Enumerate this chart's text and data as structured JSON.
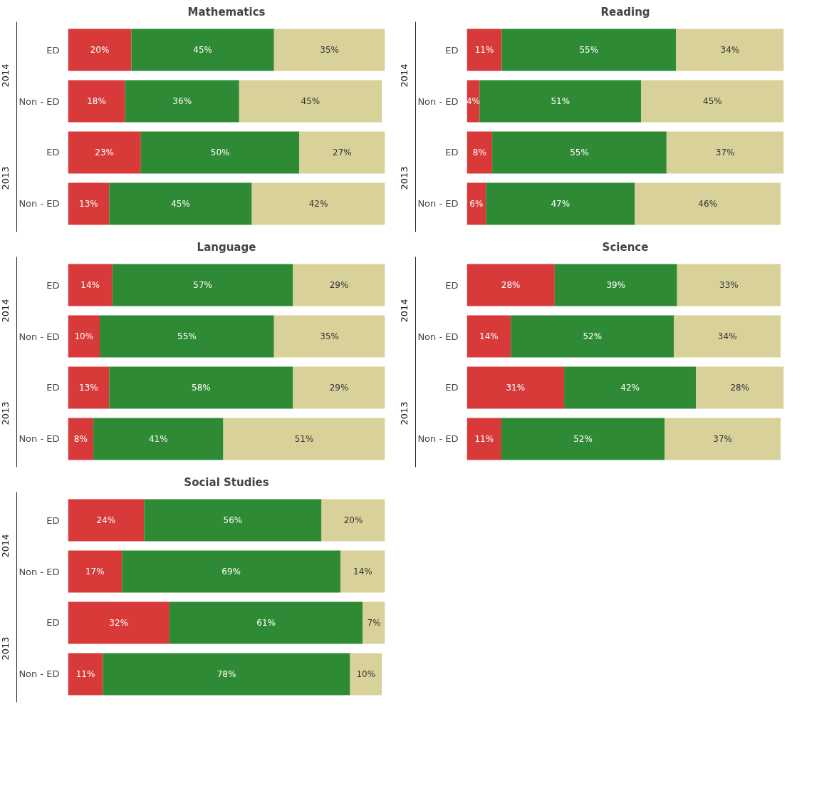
{
  "chart_data": [
    {
      "type": "bar",
      "orientation": "horizontal",
      "stacked": true,
      "title": "Mathematics",
      "categories": [
        "ED",
        "Non - ED",
        "ED",
        "Non - ED"
      ],
      "annotations": [
        "2014",
        "2013"
      ],
      "series": [
        {
          "color": "#d83a3a",
          "values": [
            20,
            18,
            23,
            13
          ],
          "value_labels": [
            "20%",
            "18%",
            "23%",
            "13%"
          ]
        },
        {
          "color": "#2f8a35",
          "values": [
            45,
            36,
            50,
            45
          ],
          "value_labels": [
            "45%",
            "36%",
            "50%",
            "45%"
          ]
        },
        {
          "color": "#d9d19a",
          "values": [
            35,
            45,
            27,
            42
          ],
          "value_labels": [
            "35%",
            "45%",
            "27%",
            "42%"
          ]
        }
      ]
    },
    {
      "type": "bar",
      "orientation": "horizontal",
      "stacked": true,
      "title": "Reading",
      "categories": [
        "ED",
        "Non - ED",
        "ED",
        "Non - ED"
      ],
      "annotations": [
        "2014",
        "2013"
      ],
      "series": [
        {
          "color": "#d83a3a",
          "values": [
            11,
            4,
            8,
            6
          ],
          "value_labels": [
            "11%",
            "4%",
            "8%",
            "6%"
          ]
        },
        {
          "color": "#2f8a35",
          "values": [
            55,
            51,
            55,
            47
          ],
          "value_labels": [
            "55%",
            "51%",
            "55%",
            "47%"
          ]
        },
        {
          "color": "#d9d19a",
          "values": [
            34,
            45,
            37,
            46
          ],
          "value_labels": [
            "34%",
            "45%",
            "37%",
            "46%"
          ]
        }
      ]
    },
    {
      "type": "bar",
      "orientation": "horizontal",
      "stacked": true,
      "title": "Language",
      "categories": [
        "ED",
        "Non - ED",
        "ED",
        "Non - ED"
      ],
      "annotations": [
        "2014",
        "2013"
      ],
      "series": [
        {
          "color": "#d83a3a",
          "values": [
            14,
            10,
            13,
            8
          ],
          "value_labels": [
            "14%",
            "10%",
            "13%",
            "8%"
          ]
        },
        {
          "color": "#2f8a35",
          "values": [
            57,
            55,
            58,
            41
          ],
          "value_labels": [
            "57%",
            "55%",
            "58%",
            "41%"
          ]
        },
        {
          "color": "#d9d19a",
          "values": [
            29,
            35,
            29,
            51
          ],
          "value_labels": [
            "29%",
            "35%",
            "29%",
            "51%"
          ]
        }
      ]
    },
    {
      "type": "bar",
      "orientation": "horizontal",
      "stacked": true,
      "title": "Science",
      "categories": [
        "ED",
        "Non - ED",
        "ED",
        "Non - ED"
      ],
      "annotations": [
        "2014",
        "2013"
      ],
      "series": [
        {
          "color": "#d83a3a",
          "values": [
            28,
            14,
            31,
            11
          ],
          "value_labels": [
            "28%",
            "14%",
            "31%",
            "11%"
          ]
        },
        {
          "color": "#2f8a35",
          "values": [
            39,
            52,
            42,
            52
          ],
          "value_labels": [
            "39%",
            "52%",
            "42%",
            "52%"
          ]
        },
        {
          "color": "#d9d19a",
          "values": [
            33,
            34,
            28,
            37
          ],
          "value_labels": [
            "33%",
            "34%",
            "28%",
            "37%"
          ]
        }
      ]
    },
    {
      "type": "bar",
      "orientation": "horizontal",
      "stacked": true,
      "title": "Social Studies",
      "categories": [
        "ED",
        "Non - ED",
        "ED",
        "Non - ED"
      ],
      "annotations": [
        "2014",
        "2013"
      ],
      "series": [
        {
          "color": "#d83a3a",
          "values": [
            24,
            17,
            32,
            11
          ],
          "value_labels": [
            "24%",
            "17%",
            "32%",
            "11%"
          ]
        },
        {
          "color": "#2f8a35",
          "values": [
            56,
            69,
            61,
            78
          ],
          "value_labels": [
            "56%",
            "69%",
            "61%",
            "78%"
          ]
        },
        {
          "color": "#d9d19a",
          "values": [
            20,
            14,
            7,
            10
          ],
          "value_labels": [
            "20%",
            "14%",
            "7%",
            "10%"
          ]
        }
      ]
    }
  ]
}
